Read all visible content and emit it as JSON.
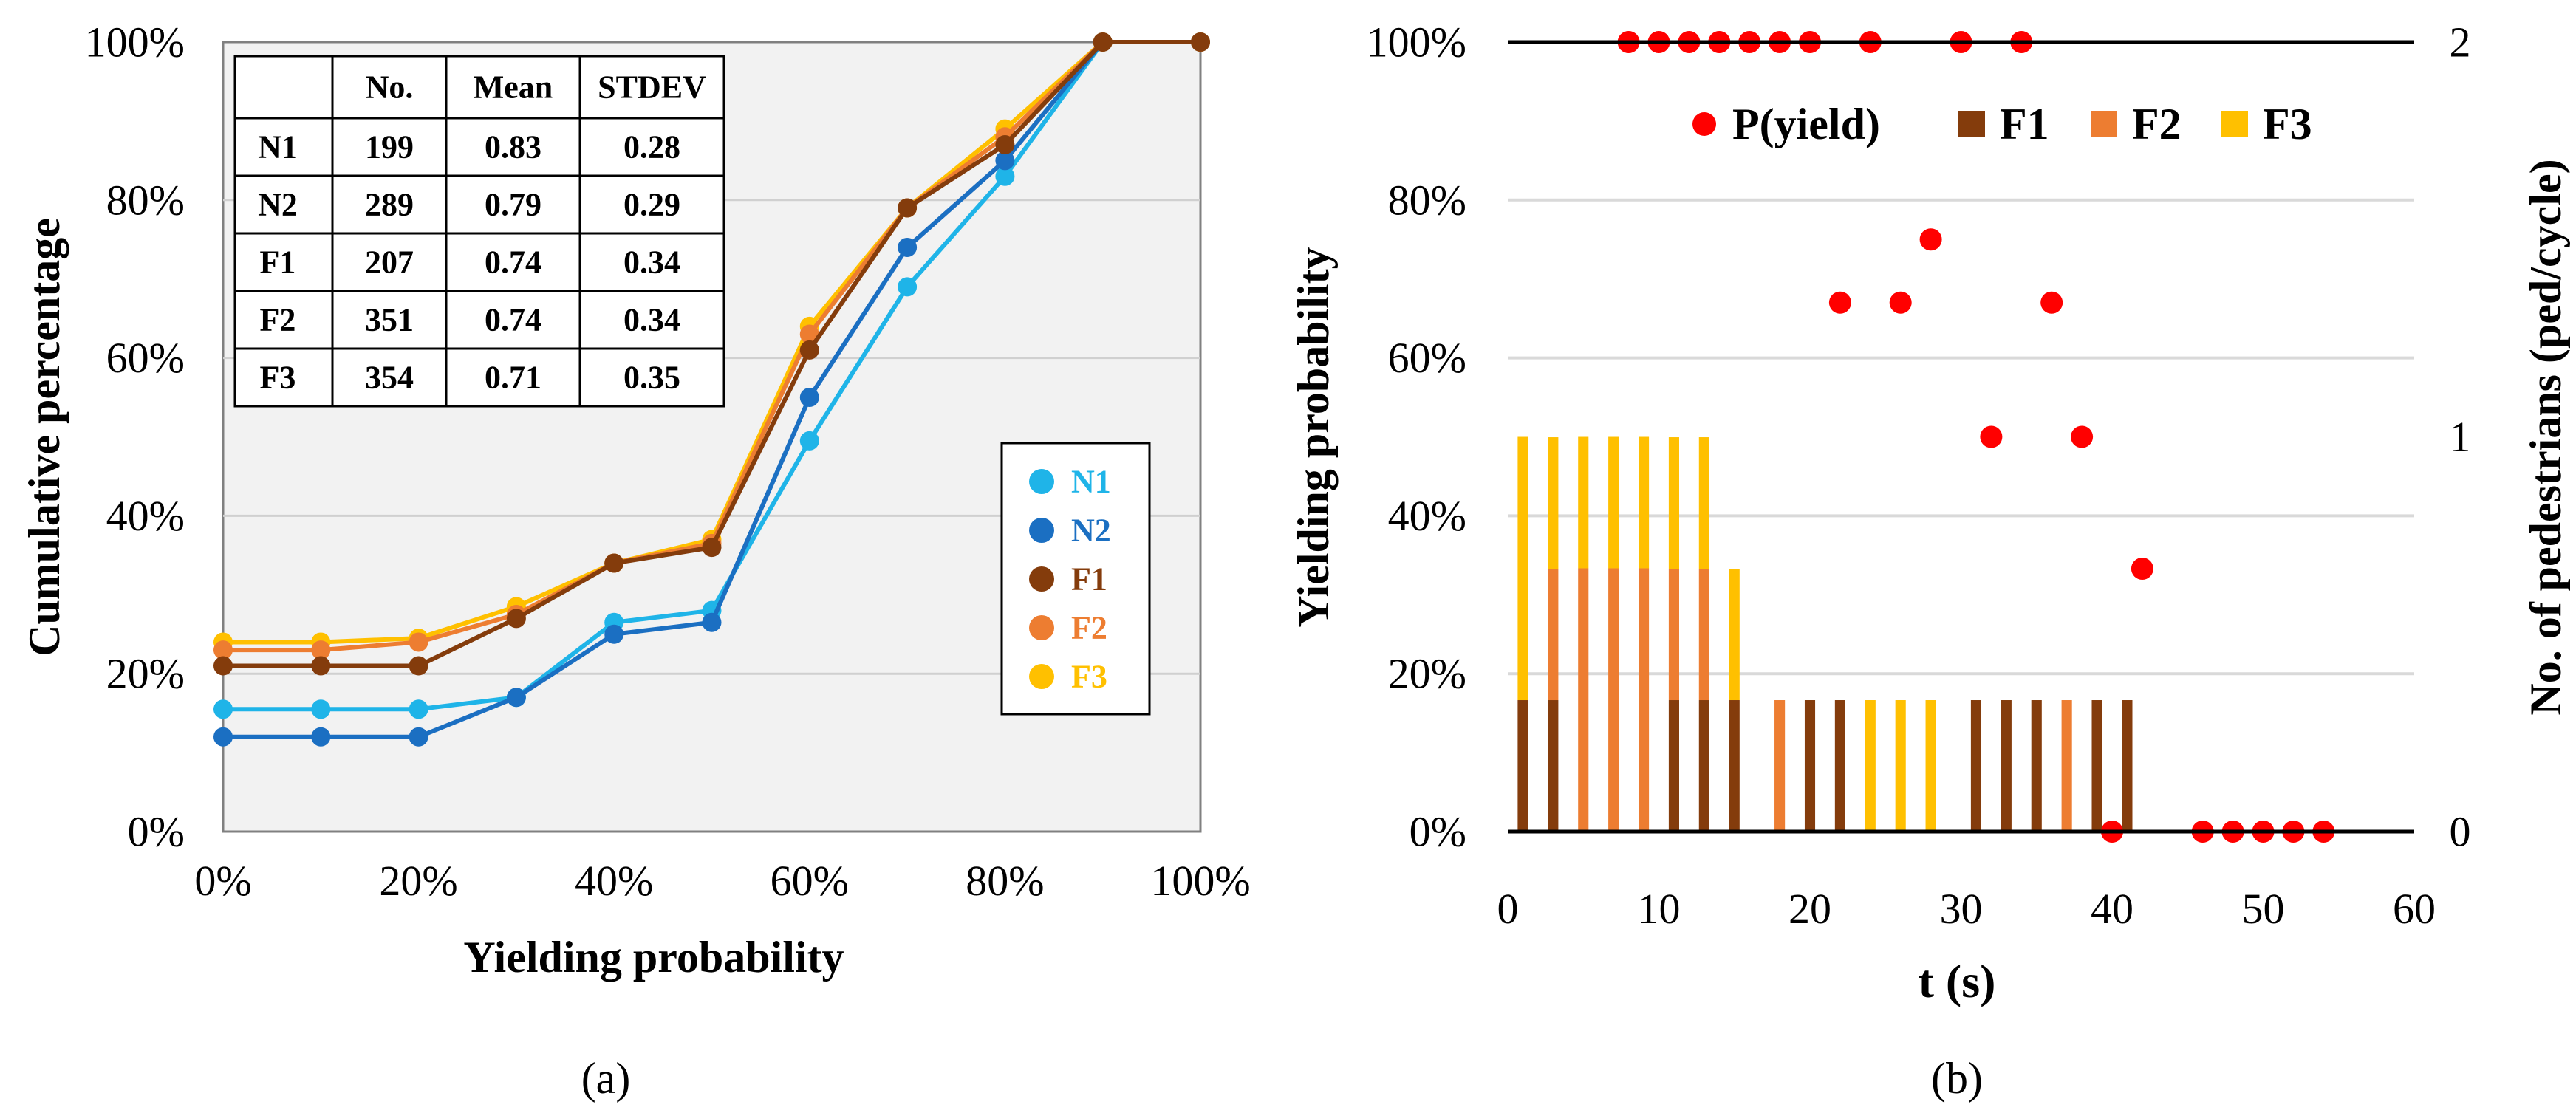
{
  "chart_data": [
    {
      "type": "line",
      "panel_label": "(a)",
      "title": "",
      "xlabel": "Yielding probability",
      "ylabel": "Cumulative percentage",
      "x": [
        0,
        10,
        20,
        30,
        40,
        50,
        60,
        70,
        80,
        90,
        100
      ],
      "xlim": [
        0,
        100
      ],
      "ylim": [
        0,
        100
      ],
      "xtick_labels": [
        "0%",
        "20%",
        "40%",
        "60%",
        "80%",
        "100%"
      ],
      "ytick_labels": [
        "0%",
        "20%",
        "40%",
        "60%",
        "80%",
        "100%"
      ],
      "grid": true,
      "series": [
        {
          "name": "N1",
          "color": "#1FB4E8",
          "values": [
            15.5,
            15.5,
            15.5,
            17,
            26.5,
            28,
            49.5,
            69,
            83,
            100,
            100
          ]
        },
        {
          "name": "N2",
          "color": "#1B6FC2",
          "values": [
            12,
            12,
            12,
            17,
            25,
            26.5,
            55,
            74,
            85,
            100,
            100
          ]
        },
        {
          "name": "F3",
          "color": "#FFC000",
          "values": [
            24,
            24,
            24.5,
            28.5,
            34,
            37,
            64,
            79,
            89,
            100,
            100
          ]
        },
        {
          "name": "F2",
          "color": "#ED7D31",
          "values": [
            23,
            23,
            24,
            27.5,
            34,
            36.5,
            63,
            79,
            88,
            100,
            100
          ]
        },
        {
          "name": "F1",
          "color": "#843C0C",
          "values": [
            21,
            21,
            21,
            27,
            34,
            36,
            61,
            79,
            87,
            100,
            100
          ]
        }
      ],
      "legend": {
        "placement": "right",
        "entries": [
          "N1",
          "N2",
          "F1",
          "F2",
          "F3"
        ]
      },
      "table": {
        "headers": [
          "",
          "No.",
          "Mean",
          "STDEV"
        ],
        "rows": [
          [
            "N1",
            "199",
            "0.83",
            "0.28"
          ],
          [
            "N2",
            "289",
            "0.79",
            "0.29"
          ],
          [
            "F1",
            "207",
            "0.74",
            "0.34"
          ],
          [
            "F2",
            "351",
            "0.74",
            "0.34"
          ],
          [
            "F3",
            "354",
            "0.71",
            "0.35"
          ]
        ]
      }
    },
    {
      "type": "bar",
      "panel_label": "(b)",
      "title": "",
      "xlabel": "t (s)",
      "ylabel": "Yielding probability",
      "ylabel_right": "No. of pedestrians (ped/cycle)",
      "xlim": [
        0,
        60
      ],
      "ylim": [
        0,
        100
      ],
      "ylim_right": [
        0,
        2
      ],
      "xtick_labels": [
        "0",
        "10",
        "20",
        "30",
        "40",
        "50",
        "60"
      ],
      "ytick_labels": [
        "0%",
        "20%",
        "40%",
        "60%",
        "80%",
        "100%"
      ],
      "ytick_labels_right": [
        "0",
        "1",
        "2"
      ],
      "grid": true,
      "legend": {
        "placement": "top",
        "entries": [
          "P(yield)",
          "F1",
          "F2",
          "F3"
        ]
      },
      "series_colors": {
        "P(yield)": "#FF0000",
        "F1": "#843C0C",
        "F2": "#ED7D31",
        "F3": "#FFC000"
      },
      "bars": [
        {
          "t": 1,
          "F1": 0.333,
          "F2": 0,
          "F3": 0.667
        },
        {
          "t": 3,
          "F1": 0.333,
          "F2": 0.333,
          "F3": 0.333
        },
        {
          "t": 5,
          "F1": 0,
          "F2": 0.667,
          "F3": 0.333
        },
        {
          "t": 7,
          "F1": 0,
          "F2": 0.667,
          "F3": 0.333
        },
        {
          "t": 9,
          "F1": 0,
          "F2": 0.667,
          "F3": 0.333
        },
        {
          "t": 11,
          "F1": 0.333,
          "F2": 0.333,
          "F3": 0.333
        },
        {
          "t": 13,
          "F1": 0.333,
          "F2": 0.333,
          "F3": 0.333
        },
        {
          "t": 15,
          "F1": 0.333,
          "F2": 0,
          "F3": 0.333
        },
        {
          "t": 18,
          "F1": 0,
          "F2": 0.333,
          "F3": 0
        },
        {
          "t": 20,
          "F1": 0.333,
          "F2": 0,
          "F3": 0
        },
        {
          "t": 22,
          "F1": 0.333,
          "F2": 0,
          "F3": 0
        },
        {
          "t": 24,
          "F1": 0,
          "F2": 0,
          "F3": 0.333
        },
        {
          "t": 26,
          "F1": 0,
          "F2": 0,
          "F3": 0.333
        },
        {
          "t": 28,
          "F1": 0,
          "F2": 0,
          "F3": 0.333
        },
        {
          "t": 31,
          "F1": 0.333,
          "F2": 0,
          "F3": 0
        },
        {
          "t": 33,
          "F1": 0.333,
          "F2": 0,
          "F3": 0
        },
        {
          "t": 35,
          "F1": 0.333,
          "F2": 0,
          "F3": 0
        },
        {
          "t": 37,
          "F1": 0,
          "F2": 0.333,
          "F3": 0
        },
        {
          "t": 39,
          "F1": 0.333,
          "F2": 0,
          "F3": 0
        },
        {
          "t": 41,
          "F1": 0.333,
          "F2": 0,
          "F3": 0
        }
      ],
      "points": [
        {
          "t": 8,
          "p": 100
        },
        {
          "t": 10,
          "p": 100
        },
        {
          "t": 12,
          "p": 100
        },
        {
          "t": 14,
          "p": 100
        },
        {
          "t": 16,
          "p": 100
        },
        {
          "t": 18,
          "p": 100
        },
        {
          "t": 20,
          "p": 100
        },
        {
          "t": 24,
          "p": 100
        },
        {
          "t": 30,
          "p": 100
        },
        {
          "t": 34,
          "p": 100
        },
        {
          "t": 22,
          "p": 67
        },
        {
          "t": 26,
          "p": 67
        },
        {
          "t": 28,
          "p": 75
        },
        {
          "t": 36,
          "p": 67
        },
        {
          "t": 32,
          "p": 50
        },
        {
          "t": 38,
          "p": 50
        },
        {
          "t": 42,
          "p": 33.3
        },
        {
          "t": 40,
          "p": 0
        },
        {
          "t": 46,
          "p": 0
        },
        {
          "t": 48,
          "p": 0
        },
        {
          "t": 50,
          "p": 0
        },
        {
          "t": 52,
          "p": 0
        },
        {
          "t": 54,
          "p": 0
        }
      ]
    }
  ]
}
